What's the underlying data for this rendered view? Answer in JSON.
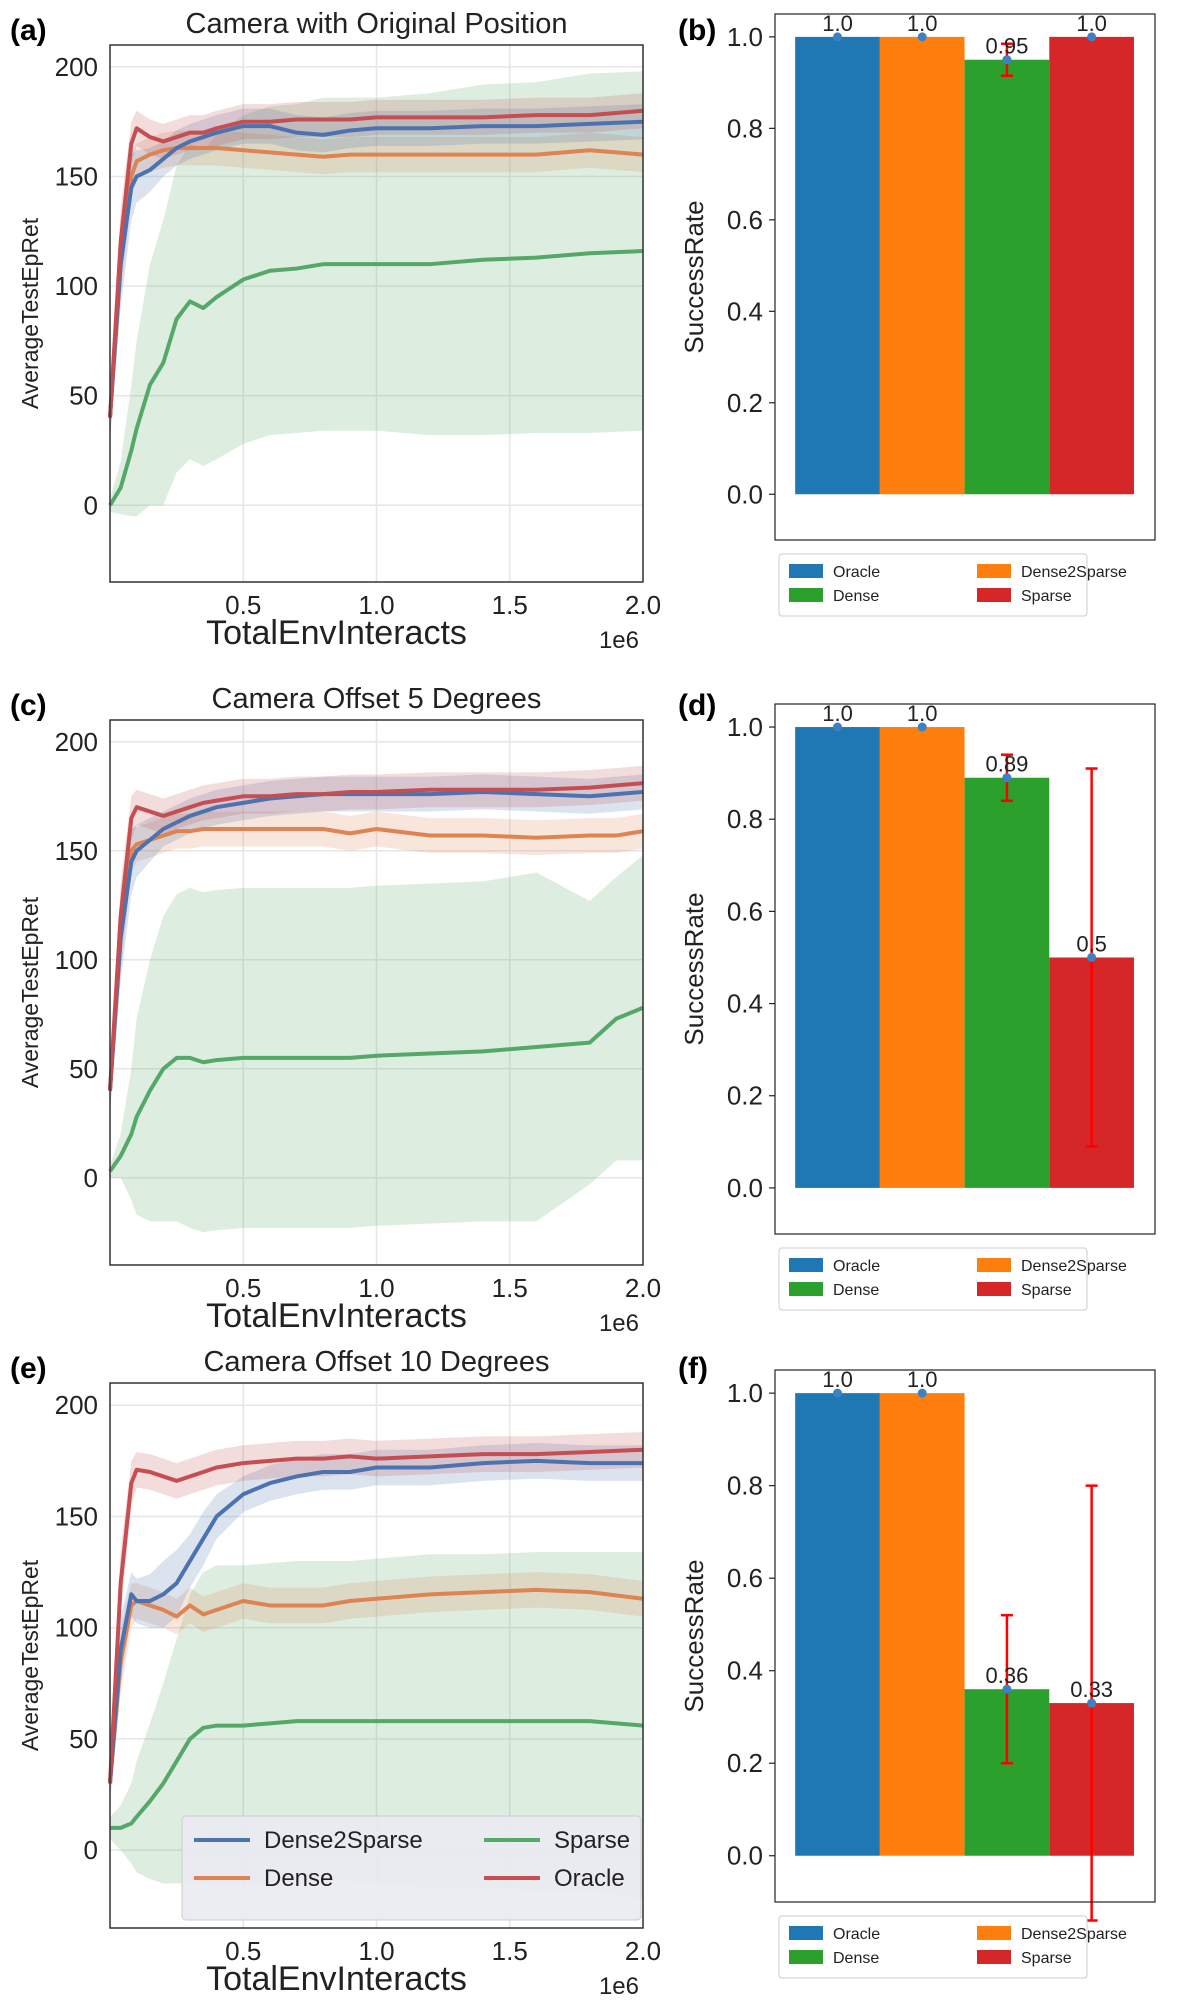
{
  "figure": {
    "colors": {
      "Dense2Sparse": "#4c72b0",
      "Dense": "#dd8452",
      "Sparse": "#55a868",
      "Oracle": "#c44e52",
      "bar_Oracle": "#1f77b4",
      "bar_Dense2Sparse": "#ff7f0e",
      "bar_Dense": "#2ca02c",
      "bar_Sparse": "#d62728",
      "errorbar": "#ff0000",
      "grid": "#e6e6e6"
    },
    "line_legend": [
      "Dense2Sparse",
      "Sparse",
      "Dense",
      "Oracle"
    ],
    "bar_legend": [
      "Oracle",
      "Dense",
      "Dense2Sparse",
      "Sparse"
    ]
  },
  "chart_data": [
    {
      "panel": "(a)",
      "type": "line",
      "title": "Camera with Original Position",
      "xlabel": "TotalEnvInteracts",
      "ylabel": "AverageTestEpRet",
      "x_scale_label": "1e6",
      "xlim": [
        0,
        2.0
      ],
      "ylim": [
        -35,
        210
      ],
      "xticks": [
        "0.5",
        "1.0",
        "1.5",
        "2.0"
      ],
      "yticks": [
        "0",
        "50",
        "100",
        "150",
        "200"
      ],
      "grid": true,
      "legend": "none",
      "x": [
        0.0,
        0.04,
        0.08,
        0.1,
        0.15,
        0.2,
        0.25,
        0.3,
        0.35,
        0.4,
        0.5,
        0.6,
        0.7,
        0.8,
        0.9,
        1.0,
        1.2,
        1.4,
        1.6,
        1.8,
        2.0
      ],
      "series": [
        {
          "name": "Dense2Sparse",
          "values": [
            40,
            110,
            145,
            150,
            153,
            158,
            163,
            166,
            168,
            170,
            173,
            173,
            170,
            169,
            171,
            172,
            172,
            173,
            173,
            174,
            175
          ],
          "band": [
            10,
            20,
            15,
            12,
            10,
            8,
            8,
            8,
            8,
            8,
            8,
            8,
            8,
            8,
            8,
            8,
            8,
            8,
            8,
            8,
            8
          ]
        },
        {
          "name": "Dense",
          "values": [
            40,
            110,
            150,
            157,
            160,
            162,
            163,
            163,
            163,
            163,
            162,
            161,
            160,
            159,
            160,
            160,
            160,
            160,
            160,
            162,
            160
          ],
          "band": [
            10,
            15,
            10,
            8,
            8,
            8,
            8,
            8,
            8,
            8,
            8,
            8,
            8,
            8,
            8,
            8,
            8,
            8,
            8,
            8,
            8
          ]
        },
        {
          "name": "Sparse",
          "values": [
            0,
            8,
            25,
            35,
            55,
            65,
            85,
            93,
            90,
            95,
            103,
            107,
            108,
            110,
            110,
            110,
            110,
            112,
            113,
            115,
            116
          ],
          "band": [
            3,
            12,
            30,
            40,
            55,
            65,
            70,
            72,
            72,
            74,
            75,
            75,
            75,
            76,
            76,
            76,
            78,
            80,
            80,
            82,
            82
          ]
        },
        {
          "name": "Oracle",
          "values": [
            40,
            120,
            165,
            172,
            168,
            166,
            168,
            170,
            170,
            172,
            175,
            175,
            176,
            176,
            176,
            177,
            177,
            177,
            178,
            178,
            180
          ],
          "band": [
            10,
            15,
            10,
            8,
            8,
            8,
            8,
            8,
            8,
            8,
            8,
            8,
            8,
            8,
            8,
            8,
            8,
            8,
            8,
            8,
            8
          ]
        }
      ]
    },
    {
      "panel": "(b)",
      "type": "bar",
      "xlabel": "",
      "ylabel": "SuccessRate",
      "ylim": [
        -0.1,
        1.05
      ],
      "yticks": [
        "0.0",
        "0.2",
        "0.4",
        "0.6",
        "0.8",
        "1.0"
      ],
      "legend": "bottom",
      "categories": [
        "Oracle",
        "Dense2Sparse",
        "Dense",
        "Sparse"
      ],
      "values": [
        1.0,
        1.0,
        0.95,
        1.0
      ],
      "labels": [
        "1.0",
        "1.0",
        "0.95",
        "1.0"
      ],
      "errors": [
        0,
        0,
        0.035,
        0
      ]
    },
    {
      "panel": "(c)",
      "type": "line",
      "title": "Camera Offset 5 Degrees",
      "xlabel": "TotalEnvInteracts",
      "ylabel": "AverageTestEpRet",
      "x_scale_label": "1e6",
      "xlim": [
        0,
        2.0
      ],
      "ylim": [
        -40,
        210
      ],
      "xticks": [
        "0.5",
        "1.0",
        "1.5",
        "2.0"
      ],
      "yticks": [
        "0",
        "50",
        "100",
        "150",
        "200"
      ],
      "grid": true,
      "legend": "none",
      "x": [
        0.0,
        0.04,
        0.08,
        0.1,
        0.15,
        0.2,
        0.25,
        0.3,
        0.35,
        0.4,
        0.5,
        0.6,
        0.7,
        0.8,
        0.9,
        1.0,
        1.2,
        1.4,
        1.6,
        1.8,
        1.9,
        2.0
      ],
      "series": [
        {
          "name": "Dense2Sparse",
          "values": [
            40,
            110,
            145,
            150,
            155,
            160,
            163,
            166,
            168,
            170,
            172,
            174,
            175,
            176,
            176,
            176,
            176,
            177,
            176,
            175,
            176,
            177
          ],
          "band": [
            10,
            20,
            15,
            12,
            10,
            8,
            8,
            8,
            8,
            8,
            8,
            8,
            8,
            8,
            8,
            8,
            8,
            8,
            8,
            8,
            8,
            8
          ]
        },
        {
          "name": "Dense",
          "values": [
            40,
            110,
            150,
            153,
            155,
            157,
            159,
            159,
            160,
            160,
            160,
            160,
            160,
            160,
            158,
            160,
            157,
            157,
            156,
            157,
            157,
            159
          ],
          "band": [
            10,
            15,
            10,
            8,
            8,
            8,
            8,
            8,
            8,
            8,
            8,
            8,
            8,
            8,
            8,
            8,
            8,
            8,
            8,
            8,
            8,
            8
          ]
        },
        {
          "name": "Sparse",
          "values": [
            3,
            10,
            20,
            28,
            40,
            50,
            55,
            55,
            53,
            54,
            55,
            55,
            55,
            55,
            55,
            56,
            57,
            58,
            60,
            62,
            73,
            78
          ],
          "band": [
            3,
            10,
            30,
            45,
            60,
            70,
            75,
            78,
            78,
            78,
            78,
            78,
            78,
            78,
            78,
            78,
            78,
            78,
            80,
            65,
            65,
            70
          ]
        },
        {
          "name": "Oracle",
          "values": [
            40,
            120,
            165,
            170,
            168,
            166,
            168,
            170,
            172,
            173,
            175,
            175,
            176,
            176,
            177,
            177,
            178,
            178,
            178,
            179,
            180,
            181
          ],
          "band": [
            10,
            15,
            10,
            8,
            8,
            8,
            8,
            8,
            8,
            8,
            8,
            8,
            8,
            8,
            8,
            8,
            8,
            8,
            8,
            8,
            8,
            8
          ]
        }
      ]
    },
    {
      "panel": "(d)",
      "type": "bar",
      "xlabel": "",
      "ylabel": "SuccessRate",
      "ylim": [
        -0.1,
        1.05
      ],
      "yticks": [
        "0.0",
        "0.2",
        "0.4",
        "0.6",
        "0.8",
        "1.0"
      ],
      "legend": "bottom",
      "categories": [
        "Oracle",
        "Dense2Sparse",
        "Dense",
        "Sparse"
      ],
      "values": [
        1.0,
        1.0,
        0.89,
        0.5
      ],
      "labels": [
        "1.0",
        "1.0",
        "0.89",
        "0.5"
      ],
      "errors": [
        0,
        0,
        0.05,
        0.41
      ]
    },
    {
      "panel": "(e)",
      "type": "line",
      "title": "Camera Offset 10 Degrees",
      "xlabel": "TotalEnvInteracts",
      "ylabel": "AverageTestEpRet",
      "x_scale_label": "1e6",
      "xlim": [
        0,
        2.0
      ],
      "ylim": [
        -35,
        210
      ],
      "xticks": [
        "0.5",
        "1.0",
        "1.5",
        "2.0"
      ],
      "yticks": [
        "0",
        "50",
        "100",
        "150",
        "200"
      ],
      "grid": true,
      "legend": "bottom-center",
      "x": [
        0.0,
        0.04,
        0.08,
        0.1,
        0.15,
        0.2,
        0.25,
        0.3,
        0.35,
        0.4,
        0.5,
        0.6,
        0.7,
        0.8,
        0.9,
        1.0,
        1.2,
        1.4,
        1.6,
        1.8,
        2.0
      ],
      "series": [
        {
          "name": "Dense2Sparse",
          "values": [
            30,
            90,
            115,
            112,
            112,
            115,
            120,
            130,
            140,
            150,
            160,
            165,
            168,
            170,
            170,
            172,
            172,
            174,
            175,
            174,
            174
          ],
          "band": [
            8,
            15,
            10,
            10,
            12,
            15,
            15,
            12,
            12,
            10,
            8,
            8,
            8,
            8,
            8,
            8,
            8,
            8,
            8,
            8,
            8
          ]
        },
        {
          "name": "Dense",
          "values": [
            30,
            85,
            110,
            112,
            110,
            108,
            105,
            110,
            106,
            108,
            112,
            110,
            110,
            110,
            112,
            113,
            115,
            116,
            117,
            116,
            113
          ],
          "band": [
            8,
            15,
            10,
            8,
            8,
            8,
            8,
            8,
            8,
            8,
            8,
            8,
            8,
            8,
            8,
            8,
            8,
            8,
            8,
            8,
            8
          ]
        },
        {
          "name": "Sparse",
          "values": [
            10,
            10,
            12,
            15,
            22,
            30,
            40,
            50,
            55,
            56,
            56,
            57,
            58,
            58,
            58,
            58,
            58,
            58,
            58,
            58,
            56
          ],
          "band": [
            5,
            10,
            18,
            25,
            35,
            45,
            55,
            65,
            70,
            72,
            72,
            72,
            72,
            72,
            72,
            73,
            75,
            75,
            76,
            76,
            78
          ]
        },
        {
          "name": "Oracle",
          "values": [
            30,
            120,
            165,
            171,
            170,
            168,
            166,
            168,
            170,
            172,
            174,
            175,
            176,
            176,
            177,
            176,
            177,
            178,
            178,
            179,
            180
          ],
          "band": [
            8,
            15,
            10,
            8,
            8,
            8,
            8,
            8,
            8,
            8,
            8,
            8,
            8,
            8,
            8,
            8,
            8,
            8,
            8,
            8,
            8
          ]
        }
      ]
    },
    {
      "panel": "(f)",
      "type": "bar",
      "xlabel": "",
      "ylabel": "SuccessRate",
      "ylim": [
        -0.1,
        1.05
      ],
      "yticks": [
        "0.0",
        "0.2",
        "0.4",
        "0.6",
        "0.8",
        "1.0"
      ],
      "legend": "bottom",
      "categories": [
        "Oracle",
        "Dense2Sparse",
        "Dense",
        "Sparse"
      ],
      "values": [
        1.0,
        1.0,
        0.36,
        0.33
      ],
      "labels": [
        "1.0",
        "1.0",
        "0.36",
        "0.33"
      ],
      "errors": [
        0,
        0,
        0.16,
        0.47
      ]
    }
  ]
}
